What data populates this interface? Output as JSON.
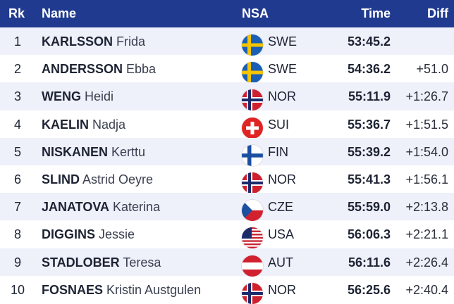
{
  "header": {
    "rk": "Rk",
    "name": "Name",
    "nsa": "NSA",
    "time": "Time",
    "diff": "Diff"
  },
  "rows": [
    {
      "rk": "1",
      "last": "KARLSSON",
      "first": "Frida",
      "nsa": "SWE",
      "time": "53:45.2",
      "diff": ""
    },
    {
      "rk": "2",
      "last": "ANDERSSON",
      "first": "Ebba",
      "nsa": "SWE",
      "time": "54:36.2",
      "diff": "+51.0"
    },
    {
      "rk": "3",
      "last": "WENG",
      "first": "Heidi",
      "nsa": "NOR",
      "time": "55:11.9",
      "diff": "+1:26.7"
    },
    {
      "rk": "4",
      "last": "KAELIN",
      "first": "Nadja",
      "nsa": "SUI",
      "time": "55:36.7",
      "diff": "+1:51.5"
    },
    {
      "rk": "5",
      "last": "NISKANEN",
      "first": "Kerttu",
      "nsa": "FIN",
      "time": "55:39.2",
      "diff": "+1:54.0"
    },
    {
      "rk": "6",
      "last": "SLIND",
      "first": "Astrid Oeyre",
      "nsa": "NOR",
      "time": "55:41.3",
      "diff": "+1:56.1"
    },
    {
      "rk": "7",
      "last": "JANATOVA",
      "first": "Katerina",
      "nsa": "CZE",
      "time": "55:59.0",
      "diff": "+2:13.8"
    },
    {
      "rk": "8",
      "last": "DIGGINS",
      "first": "Jessie",
      "nsa": "USA",
      "time": "56:06.3",
      "diff": "+2:21.1"
    },
    {
      "rk": "9",
      "last": "STADLOBER",
      "first": "Teresa",
      "nsa": "AUT",
      "time": "56:11.6",
      "diff": "+2:26.4"
    },
    {
      "rk": "10",
      "last": "FOSNAES",
      "first": "Kristin Austgulen",
      "nsa": "NOR",
      "time": "56:25.6",
      "diff": "+2:40.4"
    }
  ],
  "colors": {
    "header_bg": "#1f3a8f",
    "row_alt_bg": "#eef0fa"
  }
}
